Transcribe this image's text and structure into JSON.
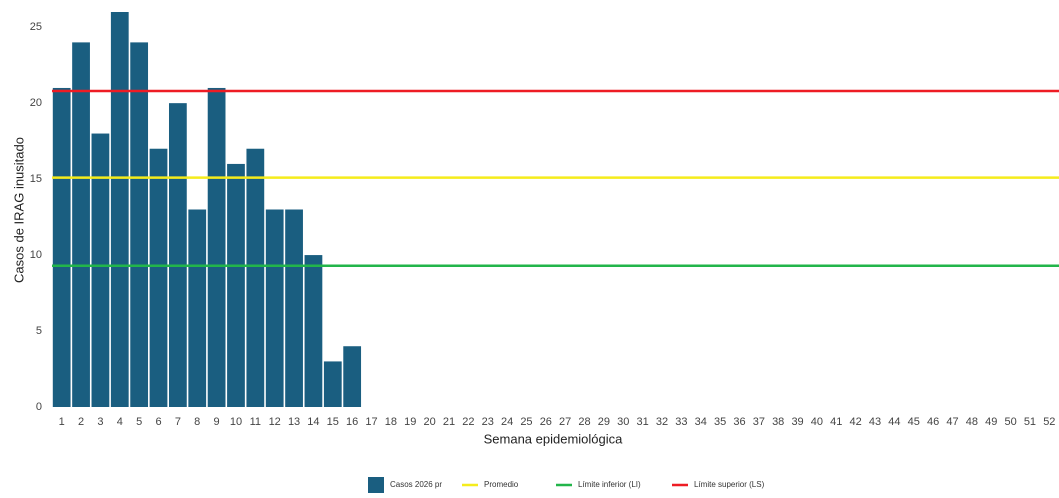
{
  "chart_data": {
    "type": "bar",
    "x_label": "Semana epidemiológica",
    "y_label": "Casos de IRAG inusitado",
    "categories": [
      "1",
      "2",
      "3",
      "4",
      "5",
      "6",
      "7",
      "8",
      "9",
      "10",
      "11",
      "12",
      "13",
      "14",
      "15",
      "16",
      "17",
      "18",
      "19",
      "20",
      "21",
      "22",
      "23",
      "24",
      "25",
      "26",
      "27",
      "28",
      "29",
      "30",
      "31",
      "32",
      "33",
      "34",
      "35",
      "36",
      "37",
      "38",
      "39",
      "40",
      "41",
      "42",
      "43",
      "44",
      "45",
      "46",
      "47",
      "48",
      "49",
      "50",
      "51",
      "52"
    ],
    "series": [
      {
        "name": "Casos 2026 pr",
        "color": "#1a5e80",
        "values": [
          21,
          24,
          18,
          26,
          24,
          17,
          20,
          13,
          21,
          16,
          17,
          13,
          13,
          10,
          3,
          4,
          null,
          null,
          null,
          null,
          null,
          null,
          null,
          null,
          null,
          null,
          null,
          null,
          null,
          null,
          null,
          null,
          null,
          null,
          null,
          null,
          null,
          null,
          null,
          null,
          null,
          null,
          null,
          null,
          null,
          null,
          null,
          null,
          null,
          null,
          null,
          null
        ]
      }
    ],
    "reference_lines": [
      {
        "name": "Promedio",
        "color": "#f5ec1c",
        "value": 15.1
      },
      {
        "name": "Límite inferior (LI)",
        "color": "#22b54a",
        "value": 9.3
      },
      {
        "name": "Límite superior (LS)",
        "color": "#ee1c24",
        "value": 20.8
      }
    ],
    "ylim": [
      0,
      26
    ],
    "yticks": [
      0,
      5,
      10,
      15,
      20,
      25
    ],
    "grid": false
  }
}
